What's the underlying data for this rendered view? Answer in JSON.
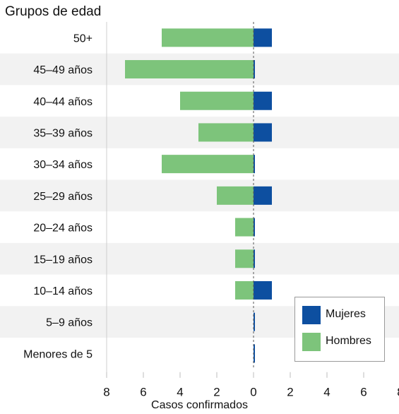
{
  "chart_data": {
    "type": "bar",
    "orientation": "horizontal",
    "title": "Grupos de edad",
    "xlabel": "Casos confirmados",
    "ylabel": "",
    "categories": [
      "50+",
      "45–49 años",
      "40–44 años",
      "35–39 años",
      "30–34 años",
      "25–29 años",
      "20–24 años",
      "15–19 años",
      "10–14 años",
      "5–9 años",
      "Menores de 5"
    ],
    "series": [
      {
        "name": "Mujeres",
        "color": "#0d4fa0",
        "values": [
          1,
          0,
          1,
          1,
          0,
          1,
          0,
          0,
          1,
          0,
          0
        ]
      },
      {
        "name": "Hombres",
        "color": "#7dc47b",
        "values": [
          5,
          7,
          4,
          3,
          5,
          2,
          1,
          1,
          1,
          0,
          0
        ]
      }
    ],
    "xlim": [
      -8,
      8
    ],
    "xticks": [
      {
        "value": -8,
        "label": "8"
      },
      {
        "value": -6,
        "label": "6"
      },
      {
        "value": -4,
        "label": "4"
      },
      {
        "value": -2,
        "label": "2"
      },
      {
        "value": 0,
        "label": "0"
      },
      {
        "value": 2,
        "label": "2"
      },
      {
        "value": 4,
        "label": "4"
      },
      {
        "value": 6,
        "label": "6"
      },
      {
        "value": 8,
        "label": "8"
      }
    ],
    "legend_position": "bottom-right",
    "row_band_color": "#f2f2f2"
  }
}
